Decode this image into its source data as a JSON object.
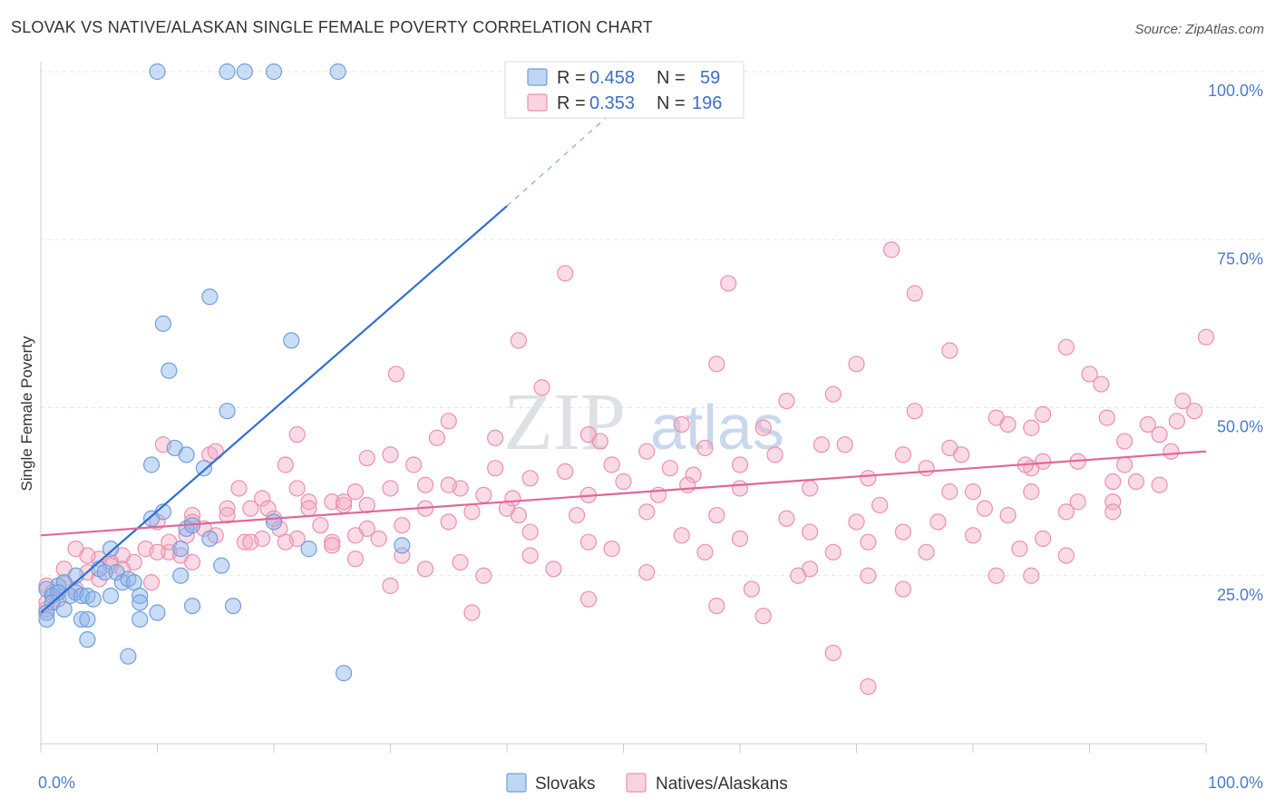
{
  "title": "SLOVAK VS NATIVE/ALASKAN SINGLE FEMALE POVERTY CORRELATION CHART",
  "source": "Source: ZipAtlas.com",
  "watermark": {
    "part1": "ZIP",
    "part2": "atlas"
  },
  "chart_data": {
    "type": "scatter",
    "ylabel": "Single Female Poverty",
    "xlabel": "",
    "xlim": [
      0,
      100
    ],
    "ylim": [
      0,
      105
    ],
    "x_ticks": [
      {
        "value": 0,
        "label": "0.0%"
      },
      {
        "value": 100,
        "label": "100.0%"
      }
    ],
    "y_ticks": [
      {
        "value": 25,
        "label": "25.0%"
      },
      {
        "value": 50,
        "label": "50.0%"
      },
      {
        "value": 75,
        "label": "75.0%"
      },
      {
        "value": 100,
        "label": "100.0%"
      }
    ],
    "grid": true,
    "legend_position": "top-center",
    "series": [
      {
        "name": "Slovaks",
        "color": "#8ab4ea",
        "stroke": "#6f9fdc",
        "r_label": "R =",
        "r_value": "0.458",
        "n_label": "N =",
        "n_value": "59",
        "trend": {
          "x0": 0,
          "y0": 19.5,
          "x1": 40,
          "y1": 80,
          "dash_x1": 51,
          "dash_y1": 97,
          "color": "#2f6fd1"
        },
        "points": [
          [
            10,
            100
          ],
          [
            16,
            100
          ],
          [
            17.5,
            100
          ],
          [
            20,
            100
          ],
          [
            25.5,
            100
          ],
          [
            14.5,
            66.5
          ],
          [
            10.5,
            62.5
          ],
          [
            21.5,
            60
          ],
          [
            11,
            55.5
          ],
          [
            16,
            49.5
          ],
          [
            9.5,
            41.5
          ],
          [
            11.5,
            44
          ],
          [
            12.5,
            43
          ],
          [
            14,
            41
          ],
          [
            10.5,
            34.5
          ],
          [
            9.5,
            33.5
          ],
          [
            20,
            33
          ],
          [
            12.5,
            32
          ],
          [
            13,
            32.5
          ],
          [
            14.5,
            30.5
          ],
          [
            12,
            29
          ],
          [
            6,
            29
          ],
          [
            23,
            29
          ],
          [
            31,
            29.5
          ],
          [
            5,
            26
          ],
          [
            5.5,
            25.5
          ],
          [
            6.5,
            25.5
          ],
          [
            3,
            25
          ],
          [
            7,
            24
          ],
          [
            7.5,
            24.5
          ],
          [
            8,
            24
          ],
          [
            15.5,
            26.5
          ],
          [
            12,
            25
          ],
          [
            1.5,
            23.5
          ],
          [
            2,
            24
          ],
          [
            0.5,
            23
          ],
          [
            1,
            22
          ],
          [
            1.5,
            22.5
          ],
          [
            2.5,
            22
          ],
          [
            3,
            22.5
          ],
          [
            3.5,
            22
          ],
          [
            4,
            22
          ],
          [
            6,
            22
          ],
          [
            4.5,
            21.5
          ],
          [
            1,
            21
          ],
          [
            0.5,
            19.5
          ],
          [
            2,
            20
          ],
          [
            8.5,
            22
          ],
          [
            8.5,
            21
          ],
          [
            10,
            19.5
          ],
          [
            13,
            20.5
          ],
          [
            16.5,
            20.5
          ],
          [
            0.5,
            18.5
          ],
          [
            3.5,
            18.5
          ],
          [
            4,
            18.5
          ],
          [
            8.5,
            18.5
          ],
          [
            4,
            15.5
          ],
          [
            7.5,
            13
          ],
          [
            26,
            10.5
          ]
        ]
      },
      {
        "name": "Natives/Alaskans",
        "color": "#f4afc6",
        "stroke": "#ec8fae",
        "r_label": "R =",
        "r_value": "0.353",
        "n_label": "N =",
        "n_value": "196",
        "trend": {
          "x0": 0,
          "y0": 31,
          "x1": 100,
          "y1": 43.5,
          "color": "#e0679a"
        },
        "points": [
          [
            73,
            73.5
          ],
          [
            45,
            70
          ],
          [
            59,
            68.5
          ],
          [
            75,
            67
          ],
          [
            41,
            60
          ],
          [
            58,
            56.5
          ],
          [
            70,
            56.5
          ],
          [
            78,
            58.5
          ],
          [
            88,
            59
          ],
          [
            100,
            60.5
          ],
          [
            30.5,
            55
          ],
          [
            43,
            53
          ],
          [
            64,
            51
          ],
          [
            68,
            52
          ],
          [
            90,
            55
          ],
          [
            91,
            53.5
          ],
          [
            98,
            51
          ],
          [
            99,
            49.5
          ],
          [
            75,
            49.5
          ],
          [
            82,
            48.5
          ],
          [
            86,
            49
          ],
          [
            91.5,
            48.5
          ],
          [
            95,
            47.5
          ],
          [
            35,
            48
          ],
          [
            47,
            46
          ],
          [
            55,
            47.5
          ],
          [
            62,
            47
          ],
          [
            69,
            44.5
          ],
          [
            78,
            44
          ],
          [
            83,
            47.5
          ],
          [
            85,
            47
          ],
          [
            93,
            45
          ],
          [
            96,
            46
          ],
          [
            97.5,
            48
          ],
          [
            22,
            46
          ],
          [
            34,
            45.5
          ],
          [
            39,
            45.5
          ],
          [
            48,
            45
          ],
          [
            52,
            43.5
          ],
          [
            57,
            44
          ],
          [
            67,
            44.5
          ],
          [
            74,
            43
          ],
          [
            79,
            43
          ],
          [
            85,
            41
          ],
          [
            89,
            42
          ],
          [
            93,
            41.5
          ],
          [
            97,
            43.5
          ],
          [
            10.5,
            44.5
          ],
          [
            14.5,
            43
          ],
          [
            15,
            43.5
          ],
          [
            21,
            41.5
          ],
          [
            28,
            42.5
          ],
          [
            30,
            43
          ],
          [
            32,
            41.5
          ],
          [
            39,
            41
          ],
          [
            42,
            39.5
          ],
          [
            45,
            40.5
          ],
          [
            49,
            41.5
          ],
          [
            54,
            41
          ],
          [
            56,
            40
          ],
          [
            60,
            41.5
          ],
          [
            63,
            43
          ],
          [
            71,
            39.5
          ],
          [
            76,
            41
          ],
          [
            80,
            37.5
          ],
          [
            84.5,
            41.5
          ],
          [
            86,
            42
          ],
          [
            92,
            39
          ],
          [
            94,
            39
          ],
          [
            96,
            38.5
          ],
          [
            17,
            38
          ],
          [
            22,
            38
          ],
          [
            27,
            37.5
          ],
          [
            30,
            38
          ],
          [
            33,
            38.5
          ],
          [
            36,
            38
          ],
          [
            38,
            37
          ],
          [
            40.5,
            36.5
          ],
          [
            47,
            37
          ],
          [
            50,
            39
          ],
          [
            53,
            37
          ],
          [
            55.5,
            38.5
          ],
          [
            60,
            38
          ],
          [
            66,
            38
          ],
          [
            72,
            35.5
          ],
          [
            78,
            37.5
          ],
          [
            81,
            35
          ],
          [
            85,
            37.5
          ],
          [
            89,
            36
          ],
          [
            92,
            36
          ],
          [
            19,
            36.5
          ],
          [
            23,
            36
          ],
          [
            25,
            36
          ],
          [
            26,
            35.5
          ],
          [
            28,
            35.5
          ],
          [
            33,
            35
          ],
          [
            37,
            34.5
          ],
          [
            41,
            34
          ],
          [
            46,
            34
          ],
          [
            52,
            34.5
          ],
          [
            58,
            34
          ],
          [
            64,
            33.5
          ],
          [
            70,
            33
          ],
          [
            77,
            33
          ],
          [
            83,
            34
          ],
          [
            88,
            34.5
          ],
          [
            92,
            34.5
          ],
          [
            16,
            35
          ],
          [
            18,
            35
          ],
          [
            13,
            34
          ],
          [
            16,
            34
          ],
          [
            19.5,
            35
          ],
          [
            20.5,
            32
          ],
          [
            22,
            30.5
          ],
          [
            25,
            30
          ],
          [
            28,
            32
          ],
          [
            31,
            32.5
          ],
          [
            35,
            33
          ],
          [
            42,
            31.5
          ],
          [
            47,
            30
          ],
          [
            55,
            31
          ],
          [
            60,
            30.5
          ],
          [
            66,
            31.5
          ],
          [
            71,
            30
          ],
          [
            74,
            31.5
          ],
          [
            80,
            31
          ],
          [
            86,
            30.5
          ],
          [
            13,
            33
          ],
          [
            14,
            32
          ],
          [
            15,
            31
          ],
          [
            17.5,
            30
          ],
          [
            19,
            30.5
          ],
          [
            21,
            30
          ],
          [
            11,
            28.5
          ],
          [
            12,
            28
          ],
          [
            9,
            29
          ],
          [
            10,
            28.5
          ],
          [
            7,
            28
          ],
          [
            6,
            27
          ],
          [
            5,
            27.5
          ],
          [
            4,
            28
          ],
          [
            3,
            29
          ],
          [
            8,
            27
          ],
          [
            13,
            27
          ],
          [
            25,
            29.5
          ],
          [
            27,
            27.5
          ],
          [
            31,
            28
          ],
          [
            36,
            27
          ],
          [
            42,
            28
          ],
          [
            49,
            29
          ],
          [
            57,
            28.5
          ],
          [
            68,
            28.5
          ],
          [
            76,
            28.5
          ],
          [
            84,
            29
          ],
          [
            88,
            28
          ],
          [
            2,
            26
          ],
          [
            4,
            25.5
          ],
          [
            5,
            24.5
          ],
          [
            6,
            26.5
          ],
          [
            7,
            26
          ],
          [
            9.5,
            24
          ],
          [
            33,
            26
          ],
          [
            38,
            25
          ],
          [
            44,
            26
          ],
          [
            52,
            25.5
          ],
          [
            66,
            26
          ],
          [
            71,
            25
          ],
          [
            82,
            25
          ],
          [
            0.5,
            23.5
          ],
          [
            1,
            22.5
          ],
          [
            2,
            24
          ],
          [
            3,
            23
          ],
          [
            1.5,
            21.5
          ],
          [
            0.5,
            21
          ],
          [
            30,
            23.5
          ],
          [
            47,
            21.5
          ],
          [
            61,
            23
          ],
          [
            65,
            25
          ],
          [
            74,
            23
          ],
          [
            85,
            25
          ],
          [
            0.5,
            20
          ],
          [
            37,
            19.5
          ],
          [
            58,
            20.5
          ],
          [
            62,
            19
          ],
          [
            68,
            13.5
          ],
          [
            71,
            8.5
          ],
          [
            40,
            35
          ],
          [
            35,
            38.5
          ],
          [
            18,
            30
          ],
          [
            24,
            32.5
          ],
          [
            27,
            31
          ],
          [
            29,
            30.5
          ],
          [
            26,
            36
          ],
          [
            23,
            35
          ],
          [
            20,
            33.5
          ],
          [
            10,
            33
          ],
          [
            12.5,
            31
          ],
          [
            11,
            30
          ]
        ]
      }
    ]
  }
}
